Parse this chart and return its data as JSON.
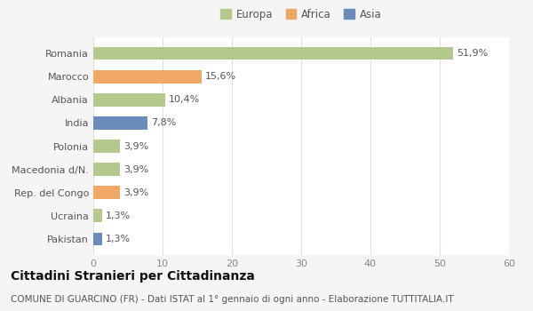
{
  "categories": [
    "Pakistan",
    "Ucraina",
    "Rep. del Congo",
    "Macedonia d/N.",
    "Polonia",
    "India",
    "Albania",
    "Marocco",
    "Romania"
  ],
  "values": [
    1.3,
    1.3,
    3.9,
    3.9,
    3.9,
    7.8,
    10.4,
    15.6,
    51.9
  ],
  "labels": [
    "1,3%",
    "1,3%",
    "3,9%",
    "3,9%",
    "3,9%",
    "7,8%",
    "10,4%",
    "15,6%",
    "51,9%"
  ],
  "colors": [
    "#6b8cba",
    "#b5c98e",
    "#f0a868",
    "#b5c98e",
    "#b5c98e",
    "#6b8cba",
    "#b5c98e",
    "#f0a868",
    "#b5c98e"
  ],
  "legend_items": [
    {
      "label": "Europa",
      "color": "#b5c98e"
    },
    {
      "label": "Africa",
      "color": "#f0a868"
    },
    {
      "label": "Asia",
      "color": "#6b8cba"
    }
  ],
  "xlim": [
    0,
    60
  ],
  "xticks": [
    0,
    10,
    20,
    30,
    40,
    50,
    60
  ],
  "title": "Cittadini Stranieri per Cittadinanza",
  "subtitle": "COMUNE DI GUARCINO (FR) - Dati ISTAT al 1° gennaio di ogni anno - Elaborazione TUTTITALIA.IT",
  "background_color": "#f5f5f5",
  "bar_background": "#ffffff",
  "grid_color": "#e0e0e0",
  "bar_label_fontsize": 8,
  "tick_fontsize": 8,
  "ytick_fontsize": 8,
  "title_fontsize": 10,
  "subtitle_fontsize": 7.5,
  "legend_fontsize": 8.5,
  "bar_height": 0.55
}
